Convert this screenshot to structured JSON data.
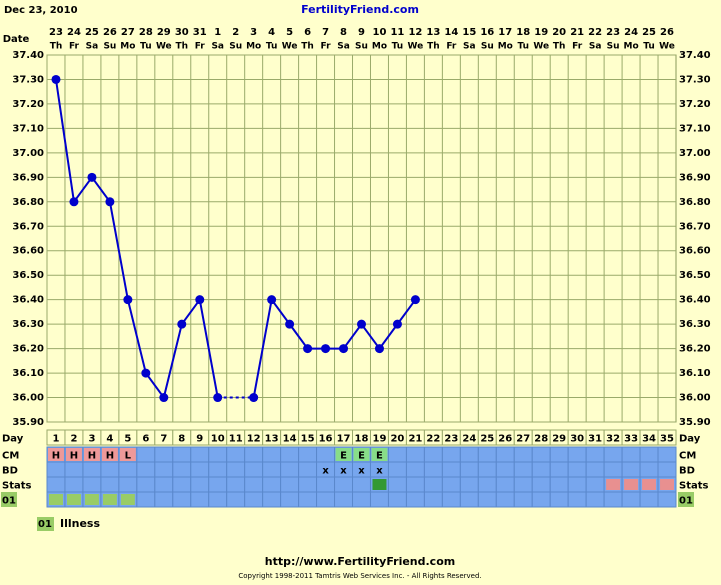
{
  "date_printed": "Dec 23, 2010",
  "site": "FertilityFriend.com",
  "chart_data": {
    "type": "line",
    "date_label": "Date",
    "day_label": "Day",
    "dates": [
      23,
      24,
      25,
      26,
      27,
      28,
      29,
      30,
      31,
      1,
      2,
      3,
      4,
      5,
      6,
      7,
      8,
      9,
      10,
      11,
      12,
      13,
      14,
      15,
      16,
      17,
      18,
      19,
      20,
      21,
      22,
      23,
      24,
      25,
      26
    ],
    "weekdays": [
      "Th",
      "Fr",
      "Sa",
      "Su",
      "Mo",
      "Tu",
      "We",
      "Th",
      "Fr",
      "Sa",
      "Su",
      "Mo",
      "Tu",
      "We",
      "Th",
      "Fr",
      "Sa",
      "Su",
      "Mo",
      "Tu",
      "We",
      "Th",
      "Fr",
      "Sa",
      "Su",
      "Mo",
      "Tu",
      "We",
      "Th",
      "Fr",
      "Sa",
      "Su",
      "Mo",
      "Tu",
      "We"
    ],
    "categories": [
      1,
      2,
      3,
      4,
      5,
      6,
      7,
      8,
      9,
      10,
      11,
      12,
      13,
      14,
      15,
      16,
      17,
      18,
      19,
      20,
      21,
      22,
      23,
      24,
      25,
      26,
      27,
      28,
      29,
      30,
      31,
      32,
      33,
      34,
      35
    ],
    "values": [
      37.3,
      36.8,
      36.9,
      36.8,
      36.4,
      36.1,
      36.0,
      36.3,
      36.4,
      36.0,
      null,
      36.0,
      36.4,
      36.3,
      36.2,
      36.2,
      36.2,
      36.3,
      36.2,
      36.3,
      36.4,
      null,
      null,
      null,
      null,
      null,
      null,
      null,
      null,
      null,
      null,
      null,
      null,
      null,
      null
    ],
    "color": "#0000cc",
    "ylim": [
      35.9,
      37.4
    ],
    "yticks": [
      {
        "value": 35.9,
        "label": "35.90"
      },
      {
        "value": 36.0,
        "label": "36.00"
      },
      {
        "value": 36.1,
        "label": "36.10"
      },
      {
        "value": 36.2,
        "label": "36.20"
      },
      {
        "value": 36.3,
        "label": "36.30"
      },
      {
        "value": 36.4,
        "label": "36.40"
      },
      {
        "value": 36.5,
        "label": "36.50"
      },
      {
        "value": 36.6,
        "label": "36.60"
      },
      {
        "value": 36.7,
        "label": "36.70"
      },
      {
        "value": 36.8,
        "label": "36.80"
      },
      {
        "value": 36.9,
        "label": "36.90"
      },
      {
        "value": 37.0,
        "label": "37.00"
      },
      {
        "value": 37.1,
        "label": "37.10"
      },
      {
        "value": 37.2,
        "label": "37.20"
      },
      {
        "value": 37.3,
        "label": "37.30"
      },
      {
        "value": 37.4,
        "label": "37.40"
      }
    ],
    "grid": true
  },
  "rows": [
    {
      "label": "CM",
      "entries": [
        {
          "day": 1,
          "text": "H",
          "color": "#ee9999"
        },
        {
          "day": 2,
          "text": "H",
          "color": "#ee9999"
        },
        {
          "day": 3,
          "text": "H",
          "color": "#ee9999"
        },
        {
          "day": 4,
          "text": "H",
          "color": "#ee9999"
        },
        {
          "day": 5,
          "text": "L",
          "color": "#ee9999"
        },
        {
          "day": 17,
          "text": "E",
          "color": "#88dd88"
        },
        {
          "day": 18,
          "text": "E",
          "color": "#88dd88"
        },
        {
          "day": 19,
          "text": "E",
          "color": "#88dd88"
        }
      ]
    },
    {
      "label": "BD",
      "entries": [
        {
          "day": 16,
          "text": "x"
        },
        {
          "day": 17,
          "text": "x"
        },
        {
          "day": 18,
          "text": "x"
        },
        {
          "day": 19,
          "text": "x"
        }
      ]
    },
    {
      "label": "Stats",
      "entries": [
        {
          "day": 19,
          "color": "#339933"
        },
        {
          "day": 32,
          "color": "#e89090"
        },
        {
          "day": 33,
          "color": "#e89090"
        },
        {
          "day": 34,
          "color": "#e89090"
        },
        {
          "day": 35,
          "color": "#e89090"
        }
      ]
    },
    {
      "label": "01",
      "entries": [
        {
          "day": 1,
          "color": "#99cc66"
        },
        {
          "day": 2,
          "color": "#99cc66"
        },
        {
          "day": 3,
          "color": "#99cc66"
        },
        {
          "day": 4,
          "color": "#99cc66"
        },
        {
          "day": 5,
          "color": "#99cc66"
        }
      ]
    }
  ],
  "legend": {
    "code": "01",
    "label": "Illness"
  },
  "footer": {
    "url": "http://www.FertilityFriend.com",
    "copyright": "Copyright 1998-2011 Tamtris Web Services Inc. - All Rights Reserved."
  }
}
